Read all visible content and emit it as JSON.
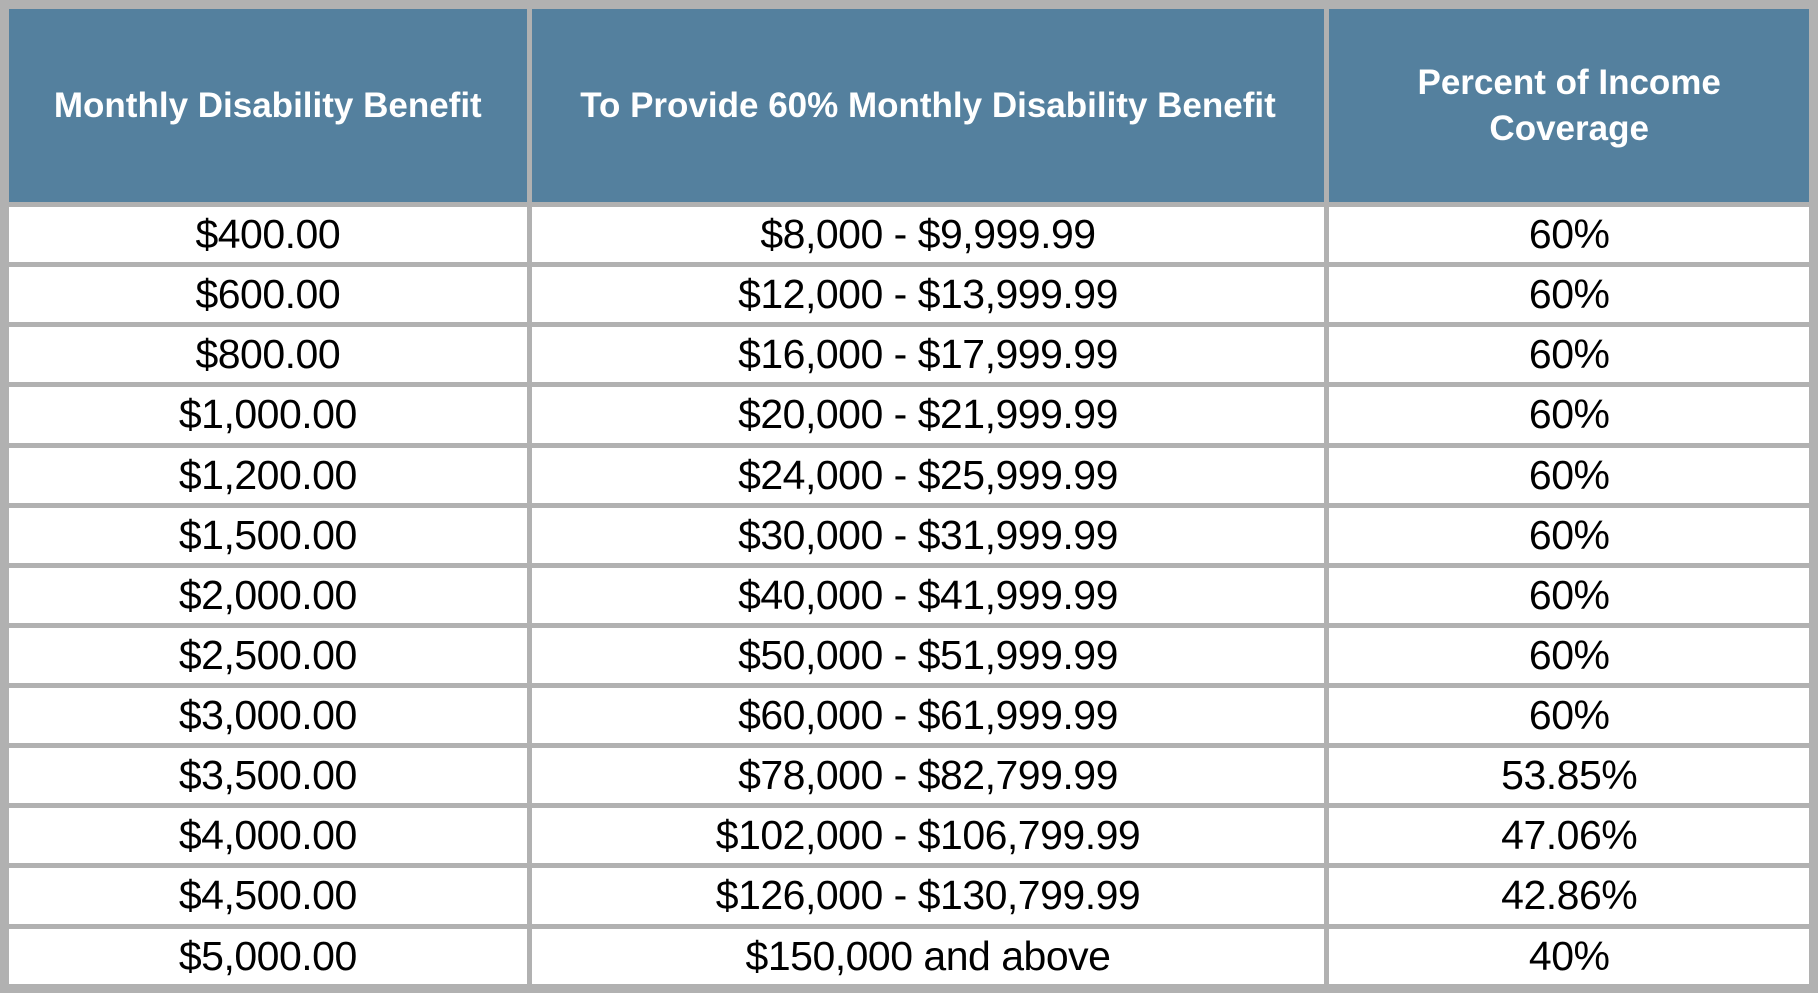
{
  "colors": {
    "header_bg": "#54809e",
    "header_text": "#ffffff",
    "border": "#b1b1b1",
    "row_bg": "#ffffff",
    "body_text": "#000000"
  },
  "table": {
    "columns": [
      {
        "label": "Monthly Disability Benefit"
      },
      {
        "label": "To Provide 60% Monthly Disability Benefit"
      },
      {
        "label": "Percent of Income Coverage"
      }
    ],
    "rows": [
      [
        "$400.00",
        "$8,000 - $9,999.99",
        "60%"
      ],
      [
        "$600.00",
        "$12,000 - $13,999.99",
        "60%"
      ],
      [
        "$800.00",
        "$16,000 - $17,999.99",
        "60%"
      ],
      [
        "$1,000.00",
        "$20,000 - $21,999.99",
        "60%"
      ],
      [
        "$1,200.00",
        "$24,000 - $25,999.99",
        "60%"
      ],
      [
        "$1,500.00",
        "$30,000 - $31,999.99",
        "60%"
      ],
      [
        "$2,000.00",
        "$40,000 - $41,999.99",
        "60%"
      ],
      [
        "$2,500.00",
        "$50,000 - $51,999.99",
        "60%"
      ],
      [
        "$3,000.00",
        "$60,000 - $61,999.99",
        "60%"
      ],
      [
        "$3,500.00",
        "$78,000 - $82,799.99",
        "53.85%"
      ],
      [
        "$4,000.00",
        "$102,000 - $106,799.99",
        "47.06%"
      ],
      [
        "$4,500.00",
        "$126,000 - $130,799.99",
        "42.86%"
      ],
      [
        "$5,000.00",
        "$150,000 and above",
        "40%"
      ]
    ]
  },
  "chart_data": {
    "type": "table",
    "title": "",
    "columns": [
      "Monthly Disability Benefit",
      "To Provide 60% Monthly Disability Benefit",
      "Percent of Income Coverage"
    ],
    "rows": [
      [
        "$400.00",
        "$8,000 - $9,999.99",
        "60%"
      ],
      [
        "$600.00",
        "$12,000 - $13,999.99",
        "60%"
      ],
      [
        "$800.00",
        "$16,000 - $17,999.99",
        "60%"
      ],
      [
        "$1,000.00",
        "$20,000 - $21,999.99",
        "60%"
      ],
      [
        "$1,200.00",
        "$24,000 - $25,999.99",
        "60%"
      ],
      [
        "$1,500.00",
        "$30,000 - $31,999.99",
        "60%"
      ],
      [
        "$2,000.00",
        "$40,000 - $41,999.99",
        "60%"
      ],
      [
        "$2,500.00",
        "$50,000 - $51,999.99",
        "60%"
      ],
      [
        "$3,000.00",
        "$60,000 - $61,999.99",
        "60%"
      ],
      [
        "$3,500.00",
        "$78,000 - $82,799.99",
        "53.85%"
      ],
      [
        "$4,000.00",
        "$102,000 - $106,799.99",
        "47.06%"
      ],
      [
        "$4,500.00",
        "$126,000 - $130,799.99",
        "42.86%"
      ],
      [
        "$5,000.00",
        "$150,000 and above",
        "40%"
      ]
    ]
  }
}
